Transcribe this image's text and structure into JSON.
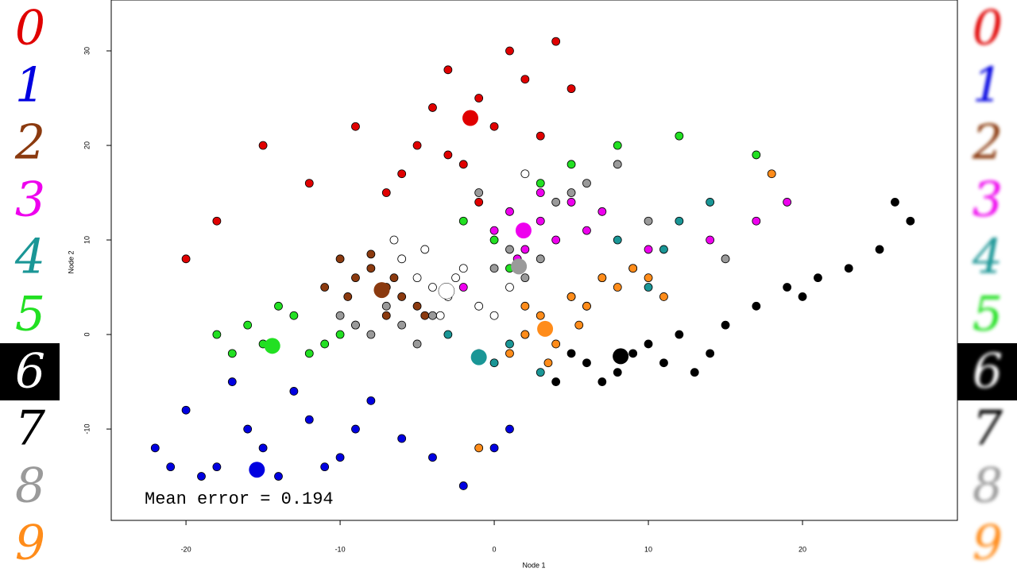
{
  "chart_data": {
    "type": "scatter",
    "x_label": "Node 1",
    "y_label": "Node 2",
    "annotation": "Mean error = 0.194",
    "xlim": [
      -24.85,
      30.05
    ],
    "ylim": [
      -19.66,
      35.38
    ],
    "xticks": [
      -20,
      -10,
      0,
      10,
      20
    ],
    "yticks": [
      -10,
      0,
      10,
      20,
      30
    ],
    "series": [
      {
        "name": "0",
        "color": "#e00000",
        "center_x": -1.55,
        "center_y": 22.9,
        "x": [
          -3,
          -1,
          1,
          -5,
          -2,
          0,
          2,
          -4,
          3,
          -6,
          -12,
          -15,
          -18,
          -20,
          -9,
          4,
          -1,
          -3,
          5,
          -7
        ],
        "y": [
          28,
          25,
          30,
          20,
          18,
          22,
          27,
          24,
          21,
          17,
          16,
          20,
          12,
          8,
          22,
          31,
          14,
          19,
          26,
          15
        ]
      },
      {
        "name": "1",
        "color": "#0000e0",
        "center_x": -15.4,
        "center_y": -14.3,
        "x": [
          -22,
          -20,
          -18,
          -16,
          -14,
          -12,
          -10,
          -8,
          -6,
          -15,
          -13,
          -11,
          -9,
          -17,
          -19,
          -4,
          -2,
          0,
          1,
          -21
        ],
        "y": [
          -12,
          -8,
          -14,
          -10,
          -15,
          -9,
          -13,
          -7,
          -11,
          -12,
          -6,
          -14,
          -10,
          -5,
          -15,
          -13,
          -16,
          -12,
          -10,
          -14
        ]
      },
      {
        "name": "2",
        "color": "#8b3a0f",
        "center_x": -7.3,
        "center_y": 4.7,
        "x": [
          -10,
          -9,
          -8,
          -7,
          -6,
          -5,
          -9.5,
          -8,
          -6.5,
          -4.5,
          -11,
          -7
        ],
        "y": [
          8,
          6,
          7,
          5,
          4,
          3,
          4,
          8.5,
          6,
          2,
          5,
          2
        ]
      },
      {
        "name": "3",
        "color": "#ee00ee",
        "center_x": 1.9,
        "center_y": 11,
        "x": [
          0,
          1,
          2,
          3,
          4,
          5,
          6,
          1.5,
          3,
          7,
          10,
          14,
          17,
          19,
          -2
        ],
        "y": [
          11,
          13,
          9,
          12,
          10,
          14,
          11,
          8,
          15,
          13,
          9,
          10,
          12,
          14,
          5
        ]
      },
      {
        "name": "4",
        "color": "#1a9696",
        "center_x": -1,
        "center_y": -2.4,
        "x": [
          -1,
          0,
          1,
          2,
          5,
          7,
          9,
          11,
          12,
          14,
          8,
          6,
          3,
          10,
          -3
        ],
        "y": [
          -2,
          -3,
          -1,
          0,
          4,
          6,
          7,
          9,
          12,
          14,
          10,
          3,
          -4,
          5,
          0
        ]
      },
      {
        "name": "5",
        "color": "#22e022",
        "center_x": -14.4,
        "center_y": -1.2,
        "x": [
          -18,
          -16,
          -15,
          -13,
          -12,
          -10,
          -9,
          -17,
          -14,
          -11,
          0,
          1,
          3,
          5,
          -2,
          8,
          12,
          17
        ],
        "y": [
          0,
          1,
          -1,
          2,
          -2,
          0,
          1,
          -2,
          3,
          -1,
          10,
          7,
          16,
          18,
          12,
          20,
          21,
          19
        ]
      },
      {
        "name": "6",
        "color": "#ffffff",
        "center_x": -3.1,
        "center_y": 4.6,
        "x": [
          -6,
          -5,
          -4,
          -3,
          -2,
          -1,
          0,
          1,
          -4.5,
          -3.5,
          -2.5,
          2,
          -6.5
        ],
        "y": [
          8,
          6,
          5,
          4,
          7,
          3,
          2,
          5,
          9,
          2,
          6,
          17,
          10
        ]
      },
      {
        "name": "7",
        "color": "#000000",
        "center_x": 8.2,
        "center_y": -2.3,
        "x": [
          4,
          6,
          8,
          9,
          10,
          11,
          12,
          13,
          15,
          17,
          19,
          21,
          23,
          25,
          27,
          26,
          7,
          5,
          14,
          20
        ],
        "y": [
          -5,
          -3,
          -4,
          -2,
          -1,
          -3,
          0,
          -4,
          1,
          3,
          5,
          6,
          7,
          9,
          12,
          14,
          -5,
          -2,
          -2,
          4
        ]
      },
      {
        "name": "8",
        "color": "#9a9a9a",
        "center_x": 1.6,
        "center_y": 7.2,
        "x": [
          -10,
          -9,
          -8,
          -7,
          -6,
          -5,
          -4,
          0,
          1,
          2,
          3,
          4,
          5,
          6,
          8,
          10,
          15,
          -1
        ],
        "y": [
          2,
          1,
          0,
          3,
          1,
          -1,
          2,
          7,
          9,
          6,
          8,
          14,
          15,
          16,
          18,
          12,
          8,
          15
        ]
      },
      {
        "name": "9",
        "color": "#ff8c1a",
        "center_x": 3.3,
        "center_y": 0.6,
        "x": [
          1,
          2,
          3,
          4,
          5,
          6,
          7,
          8,
          9,
          10,
          3.5,
          5.5,
          2,
          11,
          -1,
          18
        ],
        "y": [
          -2,
          0,
          2,
          -1,
          4,
          3,
          6,
          5,
          7,
          6,
          -3,
          1,
          3,
          4,
          -12,
          17
        ]
      }
    ]
  }
}
